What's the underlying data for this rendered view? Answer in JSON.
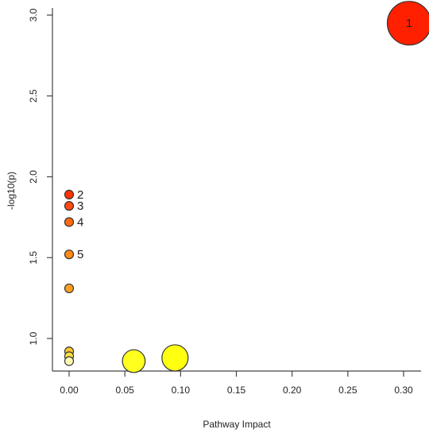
{
  "chart_data": {
    "type": "scatter",
    "title": "",
    "xlabel": "Pathway Impact",
    "ylabel": "-log10(p)",
    "xlim": [
      0,
      0.3
    ],
    "ylim": [
      0.85,
      3.0
    ],
    "xticks": [
      "0.00",
      "0.05",
      "0.10",
      "0.15",
      "0.20",
      "0.25",
      "0.30"
    ],
    "xtick_values": [
      0,
      0.05,
      0.1,
      0.15,
      0.2,
      0.25,
      0.3
    ],
    "yticks": [
      "1.0",
      "1.5",
      "2.0",
      "2.5",
      "3.0"
    ],
    "ytick_values": [
      1.0,
      1.5,
      2.0,
      2.5,
      3.0
    ],
    "grid": false,
    "encoding": "bubble size = impact, fill color = p-value (red = most significant, yellow = least)",
    "points": [
      {
        "label": "1",
        "x": 0.305,
        "y": 2.95,
        "size": 5,
        "color": "#ff2000"
      },
      {
        "label": "2",
        "x": 0.0,
        "y": 1.89,
        "size": 1,
        "color": "#ff3300"
      },
      {
        "label": "3",
        "x": 0.0,
        "y": 1.82,
        "size": 1,
        "color": "#ff4a10"
      },
      {
        "label": "4",
        "x": 0.0,
        "y": 1.72,
        "size": 1,
        "color": "#ff6a10"
      },
      {
        "label": "5",
        "x": 0.0,
        "y": 1.52,
        "size": 1,
        "color": "#ff8a18"
      },
      {
        "label": "",
        "x": 0.0,
        "y": 1.31,
        "size": 1,
        "color": "#ffa020"
      },
      {
        "label": "",
        "x": 0.0,
        "y": 0.92,
        "size": 1,
        "color": "#ffc830"
      },
      {
        "label": "",
        "x": 0.0,
        "y": 0.89,
        "size": 1,
        "color": "#ffe040"
      },
      {
        "label": "",
        "x": 0.0,
        "y": 0.86,
        "size": 1,
        "color": "#fffbb0"
      },
      {
        "label": "",
        "x": 0.058,
        "y": 0.86,
        "size": 2.6,
        "color": "#ffff20"
      },
      {
        "label": "",
        "x": 0.095,
        "y": 0.88,
        "size": 3.0,
        "color": "#ffff10"
      }
    ]
  }
}
